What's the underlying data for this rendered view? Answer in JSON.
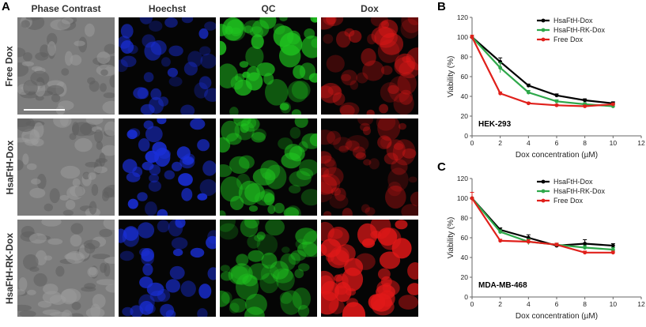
{
  "figure": {
    "panel_a": {
      "letter": "A",
      "columns": [
        "Phase Contrast",
        "Hoechst",
        "QC",
        "Dox"
      ],
      "rows": [
        "Free Dox",
        "HsaFtH-Dox",
        "HsaFtH-RK-Dox"
      ],
      "channel_colors": {
        "Phase Contrast": "#8a8a8a",
        "Hoechst": "#1a2fd8",
        "QC": "#1fc41f",
        "Dox": "#e01818"
      }
    },
    "panel_b": {
      "letter": "B",
      "cell_line": "HEK-293"
    },
    "panel_c": {
      "letter": "C",
      "cell_line": "MDA-MB-468"
    }
  },
  "chart_data": [
    {
      "type": "line",
      "panel": "B",
      "title": "",
      "annotation": "HEK-293",
      "xlabel": "Dox concentration (µM)",
      "ylabel": "Viability (%)",
      "xlim": [
        0,
        12
      ],
      "ylim": [
        0,
        120
      ],
      "xticks": [
        0,
        2,
        4,
        6,
        8,
        10,
        12
      ],
      "yticks": [
        0,
        20,
        40,
        60,
        80,
        100,
        120
      ],
      "legend_position": "top-right",
      "x": [
        0,
        2,
        4,
        6,
        8,
        10
      ],
      "series": [
        {
          "name": "HsaFtH-Dox",
          "color": "#000000",
          "values": [
            100,
            75,
            51,
            41,
            36,
            33
          ],
          "errors": [
            2,
            4,
            1.5,
            1.5,
            1.5,
            1.5
          ]
        },
        {
          "name": "HsaFtH-RK-Dox",
          "color": "#2ea84a",
          "values": [
            100,
            69,
            44,
            35,
            32,
            30
          ],
          "errors": [
            2,
            5,
            2,
            1.5,
            1.5,
            1.5
          ]
        },
        {
          "name": "Free Dox",
          "color": "#e0201b",
          "values": [
            100,
            43,
            33,
            31,
            30,
            32
          ],
          "errors": [
            2,
            1.5,
            1,
            1,
            1,
            1
          ]
        }
      ]
    },
    {
      "type": "line",
      "panel": "C",
      "title": "",
      "annotation": "MDA-MB-468",
      "xlabel": "Dox concentration (µM)",
      "ylabel": "Viability (%)",
      "xlim": [
        0,
        12
      ],
      "ylim": [
        0,
        120
      ],
      "xticks": [
        0,
        2,
        4,
        6,
        8,
        10,
        12
      ],
      "yticks": [
        0,
        20,
        40,
        60,
        80,
        100,
        120
      ],
      "legend_position": "top-right",
      "x": [
        0,
        2,
        4,
        6,
        8,
        10
      ],
      "series": [
        {
          "name": "HsaFtH-Dox",
          "color": "#000000",
          "values": [
            100,
            68,
            60,
            52,
            54,
            52
          ],
          "errors": [
            6,
            2,
            3,
            1.5,
            4,
            2
          ]
        },
        {
          "name": "HsaFtH-RK-Dox",
          "color": "#2ea84a",
          "values": [
            100,
            66,
            56,
            53,
            50,
            48
          ],
          "errors": [
            6,
            2,
            3,
            1.5,
            2,
            2
          ]
        },
        {
          "name": "Free Dox",
          "color": "#e0201b",
          "values": [
            100,
            57,
            56,
            53,
            45,
            45
          ],
          "errors": [
            6,
            1.5,
            2,
            1.5,
            1.5,
            1.5
          ]
        }
      ]
    }
  ]
}
